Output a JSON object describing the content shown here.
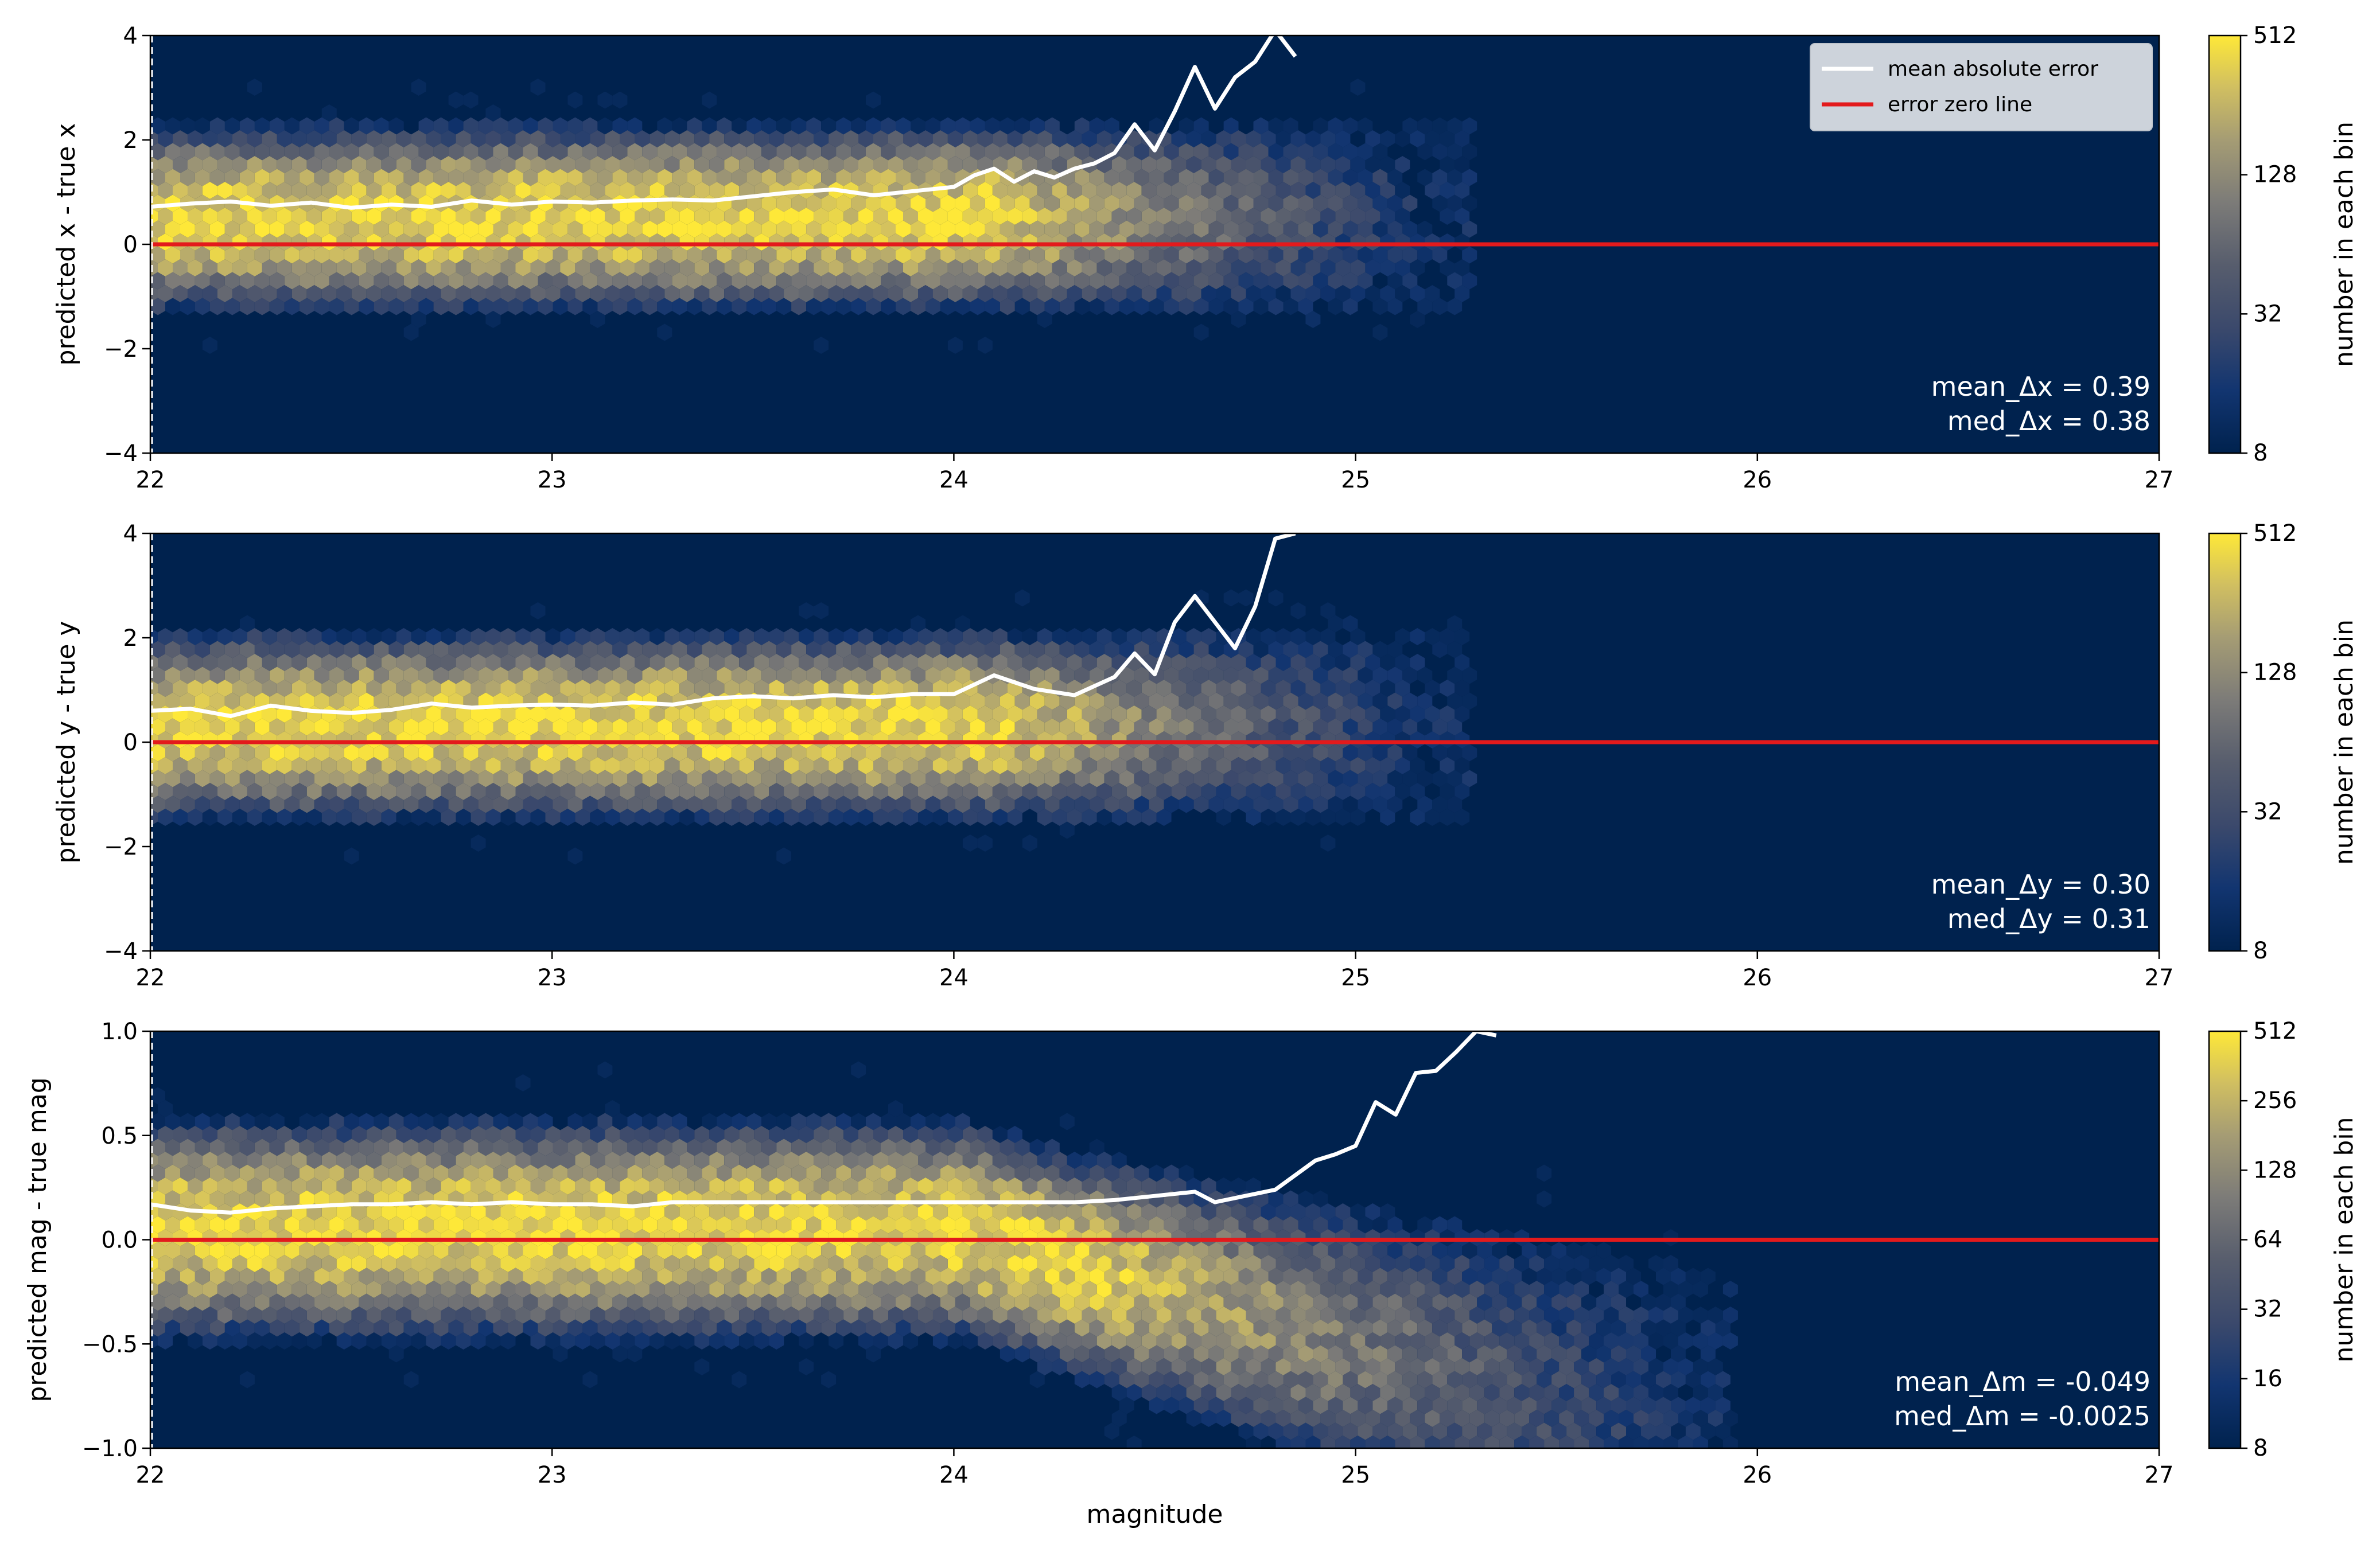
{
  "chart_data": [
    {
      "type": "heatmap",
      "subtype": "hexbin",
      "xlabel": "",
      "ylabel": "predicted x - true x",
      "xlim": [
        22,
        27
      ],
      "ylim": [
        -4,
        4
      ],
      "xticks": [
        "22",
        "23",
        "24",
        "25",
        "26",
        "27"
      ],
      "yticks": [
        "−4",
        "−2",
        "0",
        "2",
        "4"
      ],
      "colorbar": {
        "label": "number in each bin",
        "ticks": [
          "8",
          "32",
          "128",
          "512"
        ],
        "scale": "log",
        "range": [
          8,
          512
        ]
      },
      "density": {
        "x_start": 22.0,
        "x_end": 25.15,
        "core_end": 24.15,
        "center": 0.5,
        "spread": 1.2
      },
      "series": [
        {
          "name": "mean absolute error",
          "color": "#ffffff",
          "x": [
            22.0,
            22.1,
            22.2,
            22.3,
            22.4,
            22.5,
            22.6,
            22.7,
            22.8,
            22.9,
            23.0,
            23.1,
            23.2,
            23.3,
            23.4,
            23.5,
            23.6,
            23.7,
            23.8,
            23.9,
            24.0,
            24.05,
            24.1,
            24.15,
            24.2,
            24.25,
            24.3,
            24.35,
            24.4,
            24.45,
            24.5,
            24.55,
            24.6,
            24.65,
            24.7,
            24.75,
            24.8,
            24.85
          ],
          "y": [
            0.72,
            0.78,
            0.82,
            0.74,
            0.8,
            0.7,
            0.76,
            0.72,
            0.84,
            0.76,
            0.82,
            0.8,
            0.84,
            0.86,
            0.84,
            0.92,
            1.0,
            1.05,
            0.94,
            1.02,
            1.1,
            1.32,
            1.45,
            1.2,
            1.4,
            1.28,
            1.45,
            1.55,
            1.75,
            2.3,
            1.8,
            2.55,
            3.4,
            2.6,
            3.2,
            3.5,
            4.1,
            3.6
          ]
        },
        {
          "name": "error zero line",
          "color": "#e31a1c",
          "x": [
            22,
            27
          ],
          "y": [
            0,
            0
          ]
        }
      ],
      "annotations": [
        "mean_Δx = 0.39",
        "med_Δx = 0.38"
      ],
      "legend": "top-right"
    },
    {
      "type": "heatmap",
      "subtype": "hexbin",
      "xlabel": "",
      "ylabel": "predicted y - true y",
      "xlim": [
        22,
        27
      ],
      "ylim": [
        -4,
        4
      ],
      "xticks": [
        "22",
        "23",
        "24",
        "25",
        "26",
        "27"
      ],
      "yticks": [
        "−4",
        "−2",
        "0",
        "2",
        "4"
      ],
      "colorbar": {
        "label": "number in each bin",
        "ticks": [
          "8",
          "32",
          "128",
          "512"
        ],
        "scale": "log",
        "range": [
          8,
          512
        ]
      },
      "density": {
        "x_start": 22.0,
        "x_end": 25.15,
        "core_end": 24.15,
        "center": 0.3,
        "spread": 1.2
      },
      "series": [
        {
          "name": "mean absolute error",
          "color": "#ffffff",
          "x": [
            22.0,
            22.1,
            22.2,
            22.3,
            22.4,
            22.5,
            22.6,
            22.7,
            22.8,
            22.9,
            23.0,
            23.1,
            23.2,
            23.3,
            23.4,
            23.5,
            23.6,
            23.7,
            23.8,
            23.9,
            24.0,
            24.1,
            24.2,
            24.3,
            24.4,
            24.45,
            24.5,
            24.55,
            24.6,
            24.7,
            24.75,
            24.8,
            24.85
          ],
          "y": [
            0.6,
            0.64,
            0.5,
            0.7,
            0.6,
            0.56,
            0.62,
            0.74,
            0.66,
            0.7,
            0.72,
            0.7,
            0.76,
            0.72,
            0.84,
            0.88,
            0.84,
            0.9,
            0.86,
            0.92,
            0.92,
            1.28,
            1.02,
            0.9,
            1.25,
            1.7,
            1.3,
            2.3,
            2.8,
            1.8,
            2.6,
            3.9,
            4.0
          ]
        },
        {
          "name": "error zero line",
          "color": "#e31a1c",
          "x": [
            22,
            27
          ],
          "y": [
            0,
            0
          ]
        }
      ],
      "annotations": [
        "mean_Δy = 0.30",
        "med_Δy = 0.31"
      ]
    },
    {
      "type": "heatmap",
      "subtype": "hexbin",
      "xlabel": "magnitude",
      "ylabel": "predicted mag - true mag",
      "xlim": [
        22,
        27
      ],
      "ylim": [
        -1.0,
        1.0
      ],
      "xticks": [
        "22",
        "23",
        "24",
        "25",
        "26",
        "27"
      ],
      "yticks": [
        "−1.0",
        "−0.5",
        "0.0",
        "0.5",
        "1.0"
      ],
      "colorbar": {
        "label": "number in each bin",
        "ticks": [
          "8",
          "16",
          "32",
          "64",
          "128",
          "256",
          "512"
        ],
        "scale": "log",
        "range": [
          8,
          512
        ]
      },
      "density": {
        "x_start": 22.0,
        "x_end": 25.8,
        "core_end": 24.4,
        "center": 0.05,
        "spread": 0.35
      },
      "series": [
        {
          "name": "mean absolute error",
          "color": "#ffffff",
          "x": [
            22.0,
            22.1,
            22.2,
            22.3,
            22.4,
            22.5,
            22.6,
            22.7,
            22.8,
            22.9,
            23.0,
            23.1,
            23.2,
            23.3,
            23.4,
            23.5,
            23.6,
            23.7,
            23.8,
            23.9,
            24.0,
            24.1,
            24.2,
            24.3,
            24.4,
            24.5,
            24.6,
            24.65,
            24.7,
            24.8,
            24.9,
            24.95,
            25.0,
            25.05,
            25.1,
            25.15,
            25.2,
            25.25,
            25.3,
            25.35
          ],
          "y": [
            0.17,
            0.14,
            0.13,
            0.15,
            0.16,
            0.17,
            0.17,
            0.18,
            0.17,
            0.18,
            0.17,
            0.17,
            0.16,
            0.18,
            0.18,
            0.18,
            0.18,
            0.18,
            0.18,
            0.18,
            0.18,
            0.18,
            0.18,
            0.18,
            0.19,
            0.21,
            0.23,
            0.18,
            0.2,
            0.24,
            0.38,
            0.41,
            0.45,
            0.66,
            0.6,
            0.8,
            0.81,
            0.9,
            1.0,
            0.98
          ]
        },
        {
          "name": "error zero line",
          "color": "#e31a1c",
          "x": [
            22,
            27
          ],
          "y": [
            0,
            0
          ]
        }
      ],
      "annotations": [
        "mean_Δm = -0.049",
        "med_Δm = -0.0025"
      ]
    }
  ],
  "colors": {
    "background": "#00224e",
    "low": "#00224e",
    "mid": "#7c7b78",
    "high": "#fee838",
    "zero_line": "#e31a1c",
    "mae_line": "#ffffff"
  }
}
